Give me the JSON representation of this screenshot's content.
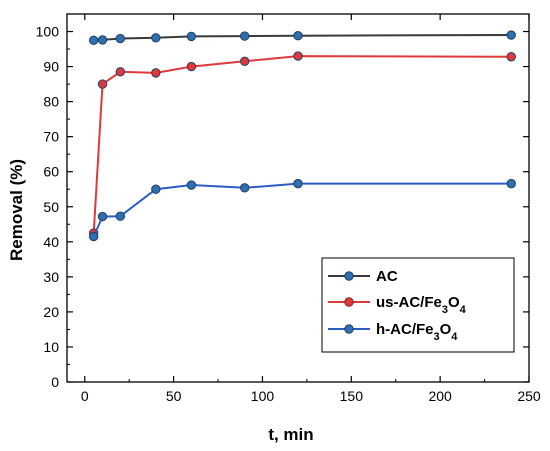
{
  "chart_data": {
    "type": "line",
    "xlabel": "t, min",
    "ylabel": "Removal (%)",
    "xlim": [
      -10,
      250
    ],
    "ylim": [
      0,
      105
    ],
    "xticks": [
      0,
      50,
      100,
      150,
      200,
      250
    ],
    "yticks": [
      0,
      10,
      20,
      30,
      40,
      50,
      60,
      70,
      80,
      90,
      100
    ],
    "grid": false,
    "legend_position": "bottom-right",
    "series": [
      {
        "name": "AC",
        "legend": {
          "base": "AC"
        },
        "color": "#3a3a3a",
        "marker_color": "#2f6fb0",
        "x": [
          5,
          10,
          20,
          40,
          60,
          90,
          120,
          240
        ],
        "y": [
          97.5,
          97.6,
          98.0,
          98.2,
          98.6,
          98.7,
          98.8,
          99.0
        ]
      },
      {
        "name": "us-AC/Fe3O4",
        "legend": {
          "base": "us-AC/Fe",
          "sub1": "3",
          "mid": "O",
          "sub2": "4"
        },
        "color": "#e0393b",
        "marker_color": "#e0393b",
        "x": [
          5,
          10,
          20,
          40,
          60,
          90,
          120,
          240
        ],
        "y": [
          42.5,
          85.0,
          88.5,
          88.2,
          90.0,
          91.5,
          93.0,
          92.8
        ]
      },
      {
        "name": "h-AC/Fe3O4",
        "legend": {
          "base": "h-AC/Fe",
          "sub1": "3",
          "mid": "O",
          "sub2": "4"
        },
        "color": "#2a5cc8",
        "marker_color": "#2f6fb0",
        "x": [
          5,
          10,
          20,
          40,
          60,
          90,
          120,
          240
        ],
        "y": [
          41.5,
          47.2,
          47.3,
          55.0,
          56.2,
          55.4,
          56.6,
          56.6
        ]
      }
    ]
  }
}
